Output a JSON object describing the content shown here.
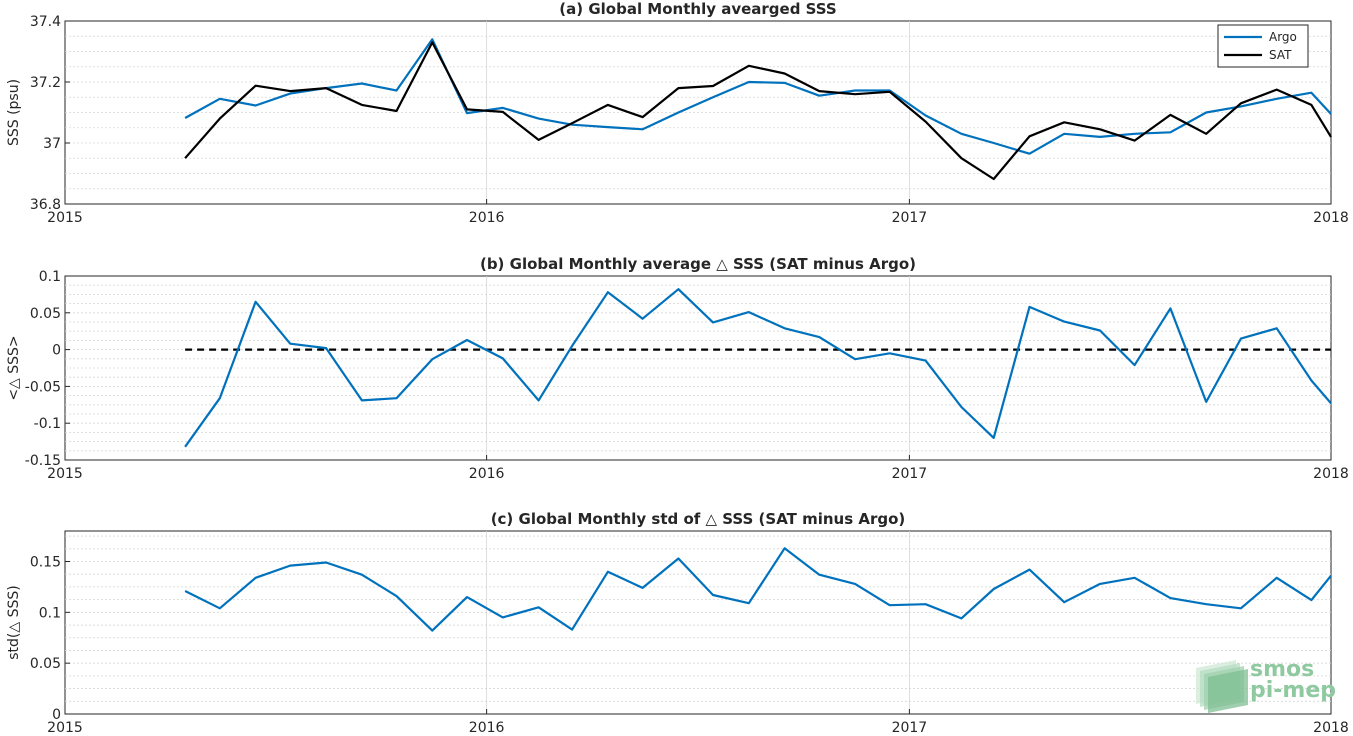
{
  "colors": {
    "argo": "#0072BD",
    "sat": "#000000",
    "zero": "#000000"
  },
  "logo": {
    "line1": "smos",
    "line2": "pi-mep"
  },
  "chart_data": [
    {
      "type": "line",
      "title": "(a) Global Monthly avearged SSS",
      "ylabel": "SSS (psu)",
      "xlim": [
        "2015-01-01",
        "2018-01-01"
      ],
      "ylim": [
        36.8,
        37.4
      ],
      "xticks": [
        "2015",
        "2016",
        "2017",
        "2018"
      ],
      "yticks": [
        "36.8",
        "37",
        "37.2",
        "37.4"
      ],
      "ytick_values": [
        36.8,
        37.0,
        37.2,
        37.4
      ],
      "grid": true,
      "legend": "top-right",
      "x": [
        "2015-04-15",
        "2015-05-15",
        "2015-06-15",
        "2015-07-15",
        "2015-08-15",
        "2015-09-15",
        "2015-10-15",
        "2015-11-15",
        "2015-12-15",
        "2016-01-15",
        "2016-02-15",
        "2016-03-15",
        "2016-04-15",
        "2016-05-15",
        "2016-06-15",
        "2016-07-15",
        "2016-08-15",
        "2016-09-15",
        "2016-10-15",
        "2016-11-15",
        "2016-12-15",
        "2017-01-15",
        "2017-02-15",
        "2017-03-15",
        "2017-04-15",
        "2017-05-15",
        "2017-06-15",
        "2017-07-15",
        "2017-08-15",
        "2017-09-15",
        "2017-10-15",
        "2017-11-15",
        "2017-12-15",
        "2018-01-01"
      ],
      "series": [
        {
          "name": "Argo",
          "color": "#0072BD",
          "values": [
            37.082,
            37.145,
            37.123,
            37.162,
            37.18,
            37.195,
            37.172,
            37.34,
            37.098,
            37.115,
            37.08,
            37.06,
            37.052,
            37.045,
            37.1,
            37.15,
            37.2,
            37.197,
            37.155,
            37.172,
            37.172,
            37.09,
            37.03,
            37.0,
            36.965,
            37.03,
            37.02,
            37.03,
            37.035,
            37.1,
            37.12,
            37.145,
            37.165,
            37.095
          ]
        },
        {
          "name": "SAT",
          "color": "#000000",
          "values": [
            36.95,
            37.08,
            37.188,
            37.17,
            37.18,
            37.125,
            37.105,
            37.33,
            37.11,
            37.102,
            37.01,
            37.065,
            37.125,
            37.085,
            37.18,
            37.187,
            37.253,
            37.228,
            37.17,
            37.16,
            37.168,
            37.07,
            36.95,
            36.882,
            37.022,
            37.068,
            37.045,
            37.008,
            37.092,
            37.03,
            37.13,
            37.175,
            37.125,
            37.02
          ]
        }
      ]
    },
    {
      "type": "line",
      "title": "(b) Global Monthly average △ SSS (SAT minus Argo)",
      "ylabel": "<△ SSS>",
      "xlim": [
        "2015-01-01",
        "2018-01-01"
      ],
      "ylim": [
        -0.15,
        0.1
      ],
      "xticks": [
        "2015",
        "2016",
        "2017",
        "2018"
      ],
      "yticks": [
        "-0.15",
        "-0.1",
        "-0.05",
        "0",
        "0.05",
        "0.1"
      ],
      "ytick_values": [
        -0.15,
        -0.1,
        -0.05,
        0,
        0.05,
        0.1
      ],
      "grid": true,
      "reference_line": 0,
      "x": [
        "2015-04-15",
        "2015-05-15",
        "2015-06-15",
        "2015-07-15",
        "2015-08-15",
        "2015-09-15",
        "2015-10-15",
        "2015-11-15",
        "2015-12-15",
        "2016-01-15",
        "2016-02-15",
        "2016-03-15",
        "2016-04-15",
        "2016-05-15",
        "2016-06-15",
        "2016-07-15",
        "2016-08-15",
        "2016-09-15",
        "2016-10-15",
        "2016-11-15",
        "2016-12-15",
        "2017-01-15",
        "2017-02-15",
        "2017-03-15",
        "2017-04-15",
        "2017-05-15",
        "2017-06-15",
        "2017-07-15",
        "2017-08-15",
        "2017-09-15",
        "2017-10-15",
        "2017-11-15",
        "2017-12-15",
        "2018-01-01"
      ],
      "series": [
        {
          "color": "#0072BD",
          "values": [
            -0.132,
            -0.066,
            0.065,
            0.008,
            0.002,
            -0.069,
            -0.066,
            -0.013,
            0.013,
            -0.012,
            -0.069,
            0.005,
            0.078,
            0.042,
            0.082,
            0.037,
            0.051,
            0.029,
            0.017,
            -0.013,
            -0.005,
            -0.015,
            -0.078,
            -0.12,
            0.058,
            0.038,
            0.026,
            -0.021,
            0.056,
            -0.071,
            0.015,
            0.029,
            -0.042,
            -0.073
          ]
        }
      ]
    },
    {
      "type": "line",
      "title": "(c) Global Monthly std of △ SSS (SAT minus Argo)",
      "ylabel": "std(△ SSS)",
      "xlim": [
        "2015-01-01",
        "2018-01-01"
      ],
      "ylim": [
        0,
        0.18
      ],
      "xticks": [
        "2015",
        "2016",
        "2017",
        "2018"
      ],
      "yticks": [
        "0",
        "0.05",
        "0.1",
        "0.15"
      ],
      "ytick_values": [
        0,
        0.05,
        0.1,
        0.15
      ],
      "grid": true,
      "x": [
        "2015-04-15",
        "2015-05-15",
        "2015-06-15",
        "2015-07-15",
        "2015-08-15",
        "2015-09-15",
        "2015-10-15",
        "2015-11-15",
        "2015-12-15",
        "2016-01-15",
        "2016-02-15",
        "2016-03-15",
        "2016-04-15",
        "2016-05-15",
        "2016-06-15",
        "2016-07-15",
        "2016-08-15",
        "2016-09-15",
        "2016-10-15",
        "2016-11-15",
        "2016-12-15",
        "2017-01-15",
        "2017-02-15",
        "2017-03-15",
        "2017-04-15",
        "2017-05-15",
        "2017-06-15",
        "2017-07-15",
        "2017-08-15",
        "2017-09-15",
        "2017-10-15",
        "2017-11-15",
        "2017-12-15",
        "2018-01-01"
      ],
      "series": [
        {
          "color": "#0072BD",
          "values": [
            0.121,
            0.104,
            0.134,
            0.146,
            0.149,
            0.137,
            0.116,
            0.082,
            0.115,
            0.095,
            0.105,
            0.083,
            0.14,
            0.124,
            0.153,
            0.117,
            0.109,
            0.163,
            0.137,
            0.128,
            0.107,
            0.108,
            0.094,
            0.123,
            0.142,
            0.11,
            0.128,
            0.134,
            0.114,
            0.108,
            0.104,
            0.134,
            0.112,
            0.136
          ]
        }
      ]
    }
  ]
}
